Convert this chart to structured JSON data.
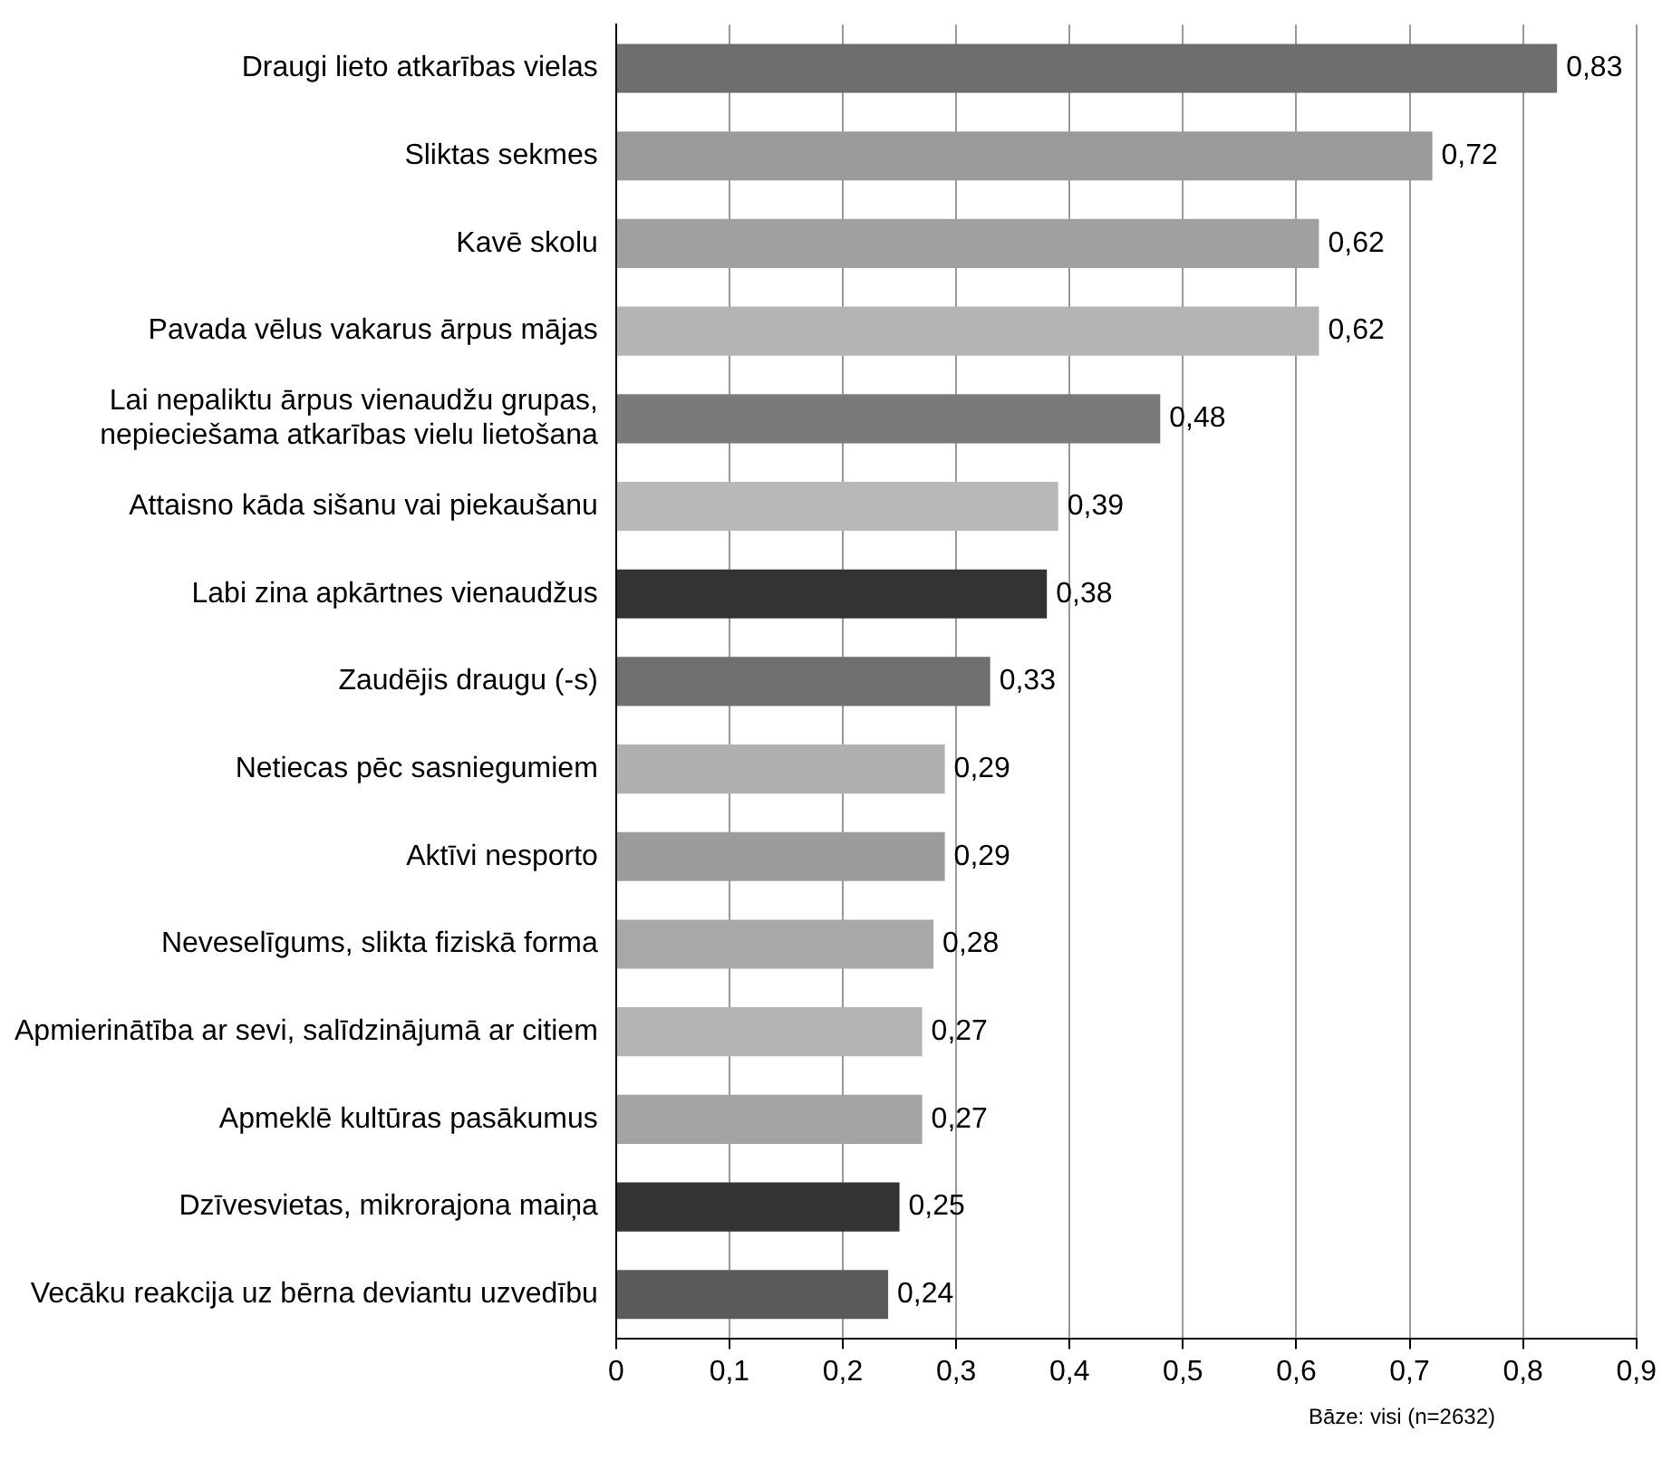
{
  "chart_data": {
    "type": "bar",
    "orientation": "horizontal",
    "categories": [
      "Draugi lieto atkarības vielas",
      "Sliktas sekmes",
      "Kavē skolu",
      "Pavada vēlus vakarus ārpus mājas",
      "Lai nepaliktu ārpus vienaudžu grupas,\nnepieciešama atkarības vielu lietošana",
      "Attaisno kāda sišanu vai piekaušanu",
      "Labi zina apkārtnes vienaudžus",
      "Zaudējis draugu (-s)",
      "Netiecas pēc sasniegumiem",
      "Aktīvi nesporto",
      "Neveselīgums, slikta fiziskā forma",
      "Apmierinātība ar sevi, salīdzinājumā ar citiem",
      "Apmeklē kultūras pasākumus",
      "Dzīvesvietas, mikrorajona maiņa",
      "Vecāku reakcija uz bērna deviantu uzvedību"
    ],
    "values": [
      0.83,
      0.72,
      0.62,
      0.62,
      0.48,
      0.39,
      0.38,
      0.33,
      0.29,
      0.29,
      0.28,
      0.27,
      0.27,
      0.25,
      0.24
    ],
    "colors": [
      "#6e6e6e",
      "#9a9a9a",
      "#a0a0a0",
      "#b4b4b4",
      "#7a7a7a",
      "#b8b8b8",
      "#333333",
      "#707070",
      "#b0b0b0",
      "#9c9c9c",
      "#a8a8a8",
      "#b4b4b4",
      "#a4a4a4",
      "#333333",
      "#5a5a5a"
    ],
    "value_labels": [
      "0,83",
      "0,72",
      "0,62",
      "0,62",
      "0,48",
      "0,39",
      "0,38",
      "0,33",
      "0,29",
      "0,29",
      "0,28",
      "0,27",
      "0,27",
      "0,25",
      "0,24"
    ],
    "xlim": [
      0,
      0.9
    ],
    "xticks": [
      {
        "value": 0,
        "label": "0"
      },
      {
        "value": 0.1,
        "label": "0,1"
      },
      {
        "value": 0.2,
        "label": "0,2"
      },
      {
        "value": 0.3,
        "label": "0,3"
      },
      {
        "value": 0.4,
        "label": "0,4"
      },
      {
        "value": 0.5,
        "label": "0,5"
      },
      {
        "value": 0.6,
        "label": "0,6"
      },
      {
        "value": 0.7,
        "label": "0,7"
      },
      {
        "value": 0.8,
        "label": "0,8"
      },
      {
        "value": 0.9,
        "label": "0,9"
      }
    ],
    "grid": "x",
    "legend": false,
    "annotations": [
      "Bāze: visi  (n=2632)"
    ]
  }
}
